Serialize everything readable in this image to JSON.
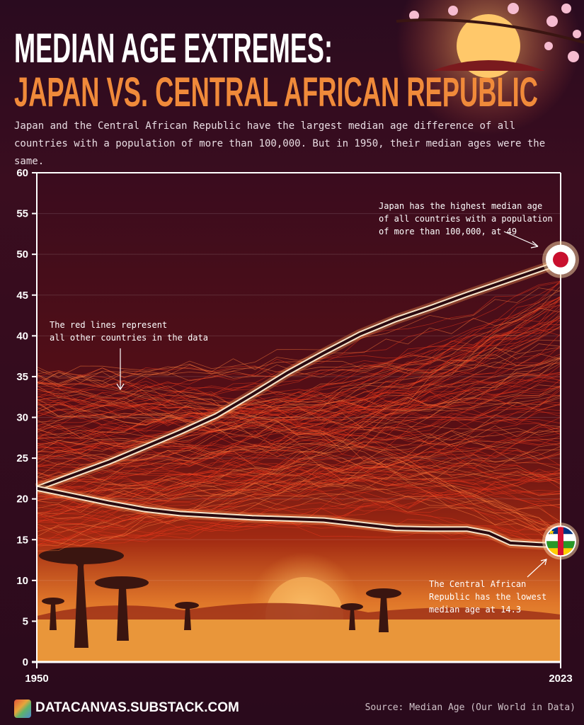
{
  "header": {
    "title_line1": "MEDIAN AGE EXTREMES:",
    "title_line2": "JAPAN VS. CENTRAL AFRICAN REPUBLIC",
    "subtitle": "Japan and the Central African Republic have the largest median age difference of all countries with a population of more than 100,000. But in 1950, their median ages were the same."
  },
  "chart_data": {
    "type": "line",
    "xlim": [
      1950,
      2023
    ],
    "ylim": [
      0,
      60
    ],
    "x_ticks": [
      "1950",
      "2023"
    ],
    "y_ticks": [
      "0",
      "5",
      "10",
      "15",
      "20",
      "25",
      "30",
      "35",
      "40",
      "45",
      "50",
      "55",
      "60"
    ],
    "grid": true,
    "series": [
      {
        "name": "Japan",
        "color": "#f7e3c8",
        "x": [
          1950,
          1960,
          1970,
          1975,
          1980,
          1985,
          1990,
          1995,
          2000,
          2005,
          2010,
          2015,
          2020,
          2023
        ],
        "y": [
          21.3,
          24.5,
          28.2,
          30.2,
          32.8,
          35.5,
          37.9,
          40.2,
          42.0,
          43.5,
          45.1,
          46.6,
          48.1,
          49
        ]
      },
      {
        "name": "Central African Republic",
        "color": "#f7e3c8",
        "x": [
          1950,
          1960,
          1965,
          1970,
          1980,
          1990,
          1995,
          2000,
          2005,
          2010,
          2013,
          2016,
          2020,
          2023
        ],
        "y": [
          21.3,
          19.5,
          18.7,
          18.2,
          17.7,
          17.4,
          16.9,
          16.4,
          16.3,
          16.3,
          15.8,
          14.6,
          14.4,
          14.3
        ]
      }
    ],
    "other_countries_color": "#e8361c",
    "annotations": [
      {
        "target": "Japan",
        "lines": [
          "Japan has the highest median age",
          "of all countries with a population",
          "of more than 100,000, at 49"
        ]
      },
      {
        "target": "other",
        "lines": [
          "The red lines represent",
          "all other countries in the data"
        ]
      },
      {
        "target": "Central African Republic",
        "lines": [
          "The Central African",
          "Republic has the lowest",
          "median age at 14.3"
        ]
      }
    ]
  },
  "footer": {
    "brand": "DATACANVAS.SUBSTACK.COM",
    "source": "Source: Median Age (Our World in Data)"
  },
  "colors": {
    "background": "#2a0b1f",
    "accent": "#f08a3a",
    "japan_flag_red": "#c8102e"
  }
}
